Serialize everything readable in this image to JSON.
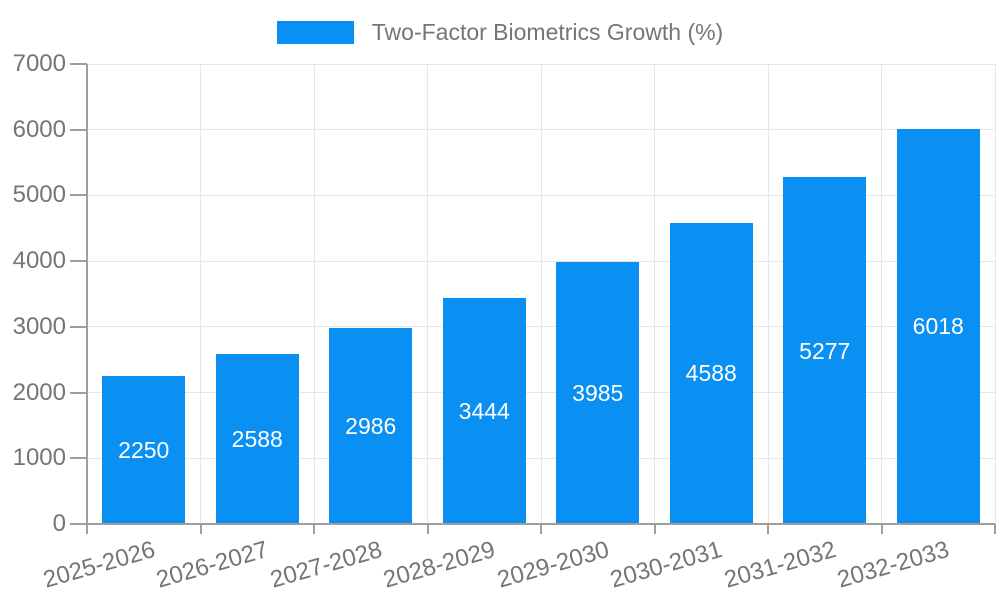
{
  "chart_data": {
    "type": "bar",
    "title": "Two-Factor Biometrics Growth (%)",
    "legend": {
      "position": "top",
      "entries": [
        "Two-Factor Biometrics Growth (%)"
      ]
    },
    "categories": [
      "2025-2026",
      "2026-2027",
      "2027-2028",
      "2028-2029",
      "2029-2030",
      "2030-2031",
      "2031-2032",
      "2032-2033"
    ],
    "series": [
      {
        "name": "Two-Factor Biometrics Growth (%)",
        "values": [
          2250,
          2588,
          2986,
          3444,
          3985,
          4588,
          5277,
          6018
        ]
      }
    ],
    "value_labels": [
      "2250",
      "2588",
      "2986",
      "3444",
      "3985",
      "4588",
      "5277",
      "6018"
    ],
    "xlabel": "",
    "ylabel": "",
    "ylim": [
      0,
      7000
    ],
    "ytick_step": 1000,
    "yticks": [
      "0",
      "1000",
      "2000",
      "3000",
      "4000",
      "5000",
      "6000",
      "7000"
    ],
    "grid": true,
    "colors": {
      "bar": "#0a8ff2",
      "bar_value_text": "#ffffff",
      "axis_text": "#757575",
      "grid_line": "#e6e6e6",
      "axis_line": "#9e9e9e",
      "background": "#ffffff"
    }
  }
}
